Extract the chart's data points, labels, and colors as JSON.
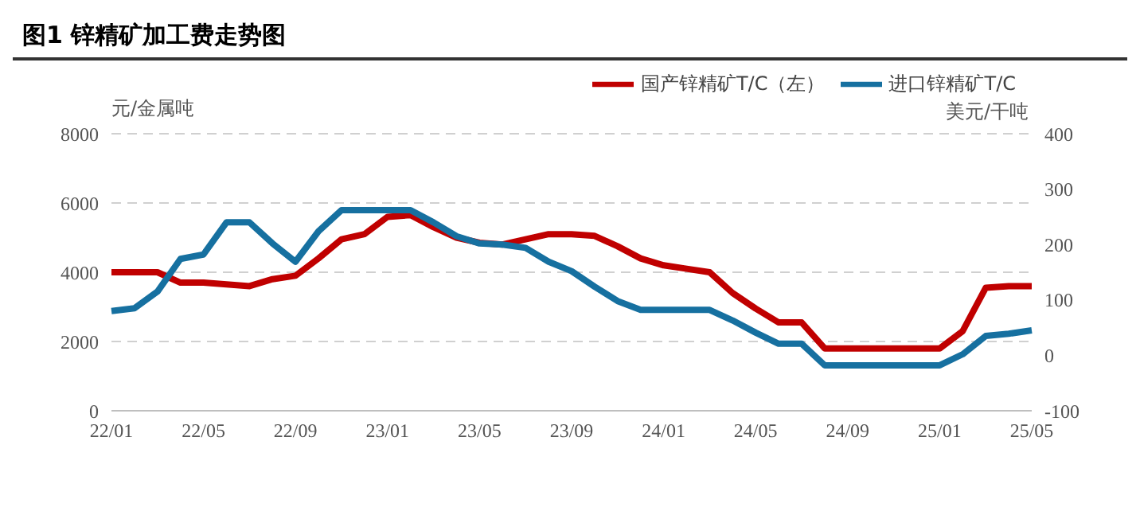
{
  "chart_data": {
    "type": "line",
    "title": "图1 锌精矿加工费走势图",
    "categories": [
      "22/01",
      null,
      null,
      null,
      "22/05",
      null,
      null,
      null,
      "22/09",
      null,
      null,
      null,
      "23/01",
      null,
      null,
      null,
      "23/05",
      null,
      null,
      null,
      "23/09",
      null,
      null,
      null,
      "24/01",
      null,
      null,
      null,
      "24/05",
      null,
      null,
      null,
      "24/09",
      null,
      null,
      null,
      "25/01",
      null,
      null,
      null,
      "25/05"
    ],
    "series": [
      {
        "name": "国产锌精矿T/C（左）",
        "color": "#c00000",
        "values": [
          4000,
          4000,
          4000,
          3700,
          3700,
          3650,
          3600,
          3800,
          3900,
          4400,
          4950,
          5100,
          5600,
          5650,
          5300,
          5000,
          4850,
          4800,
          4950,
          5100,
          5100,
          5050,
          4750,
          4400,
          4200,
          4100,
          4000,
          3400,
          2950,
          2550,
          2550,
          1800,
          1800,
          1800,
          1800,
          1800,
          1800,
          2300,
          3550,
          3600,
          3600
        ]
      },
      {
        "name": "进口锌精矿T/C",
        "color": "#1670a0",
        "axis": "y2",
        "values": [
          80,
          85,
          115,
          174,
          182,
          240,
          240,
          202,
          169,
          224,
          262,
          262,
          262,
          262,
          240,
          215,
          202,
          200,
          194,
          169,
          152,
          124,
          98,
          82,
          82,
          82,
          82,
          63,
          41,
          21,
          21,
          -18,
          -18,
          -18,
          -18,
          -18,
          -18,
          2,
          35,
          39,
          45
        ]
      }
    ],
    "ylabel": "元/金属吨",
    "y2label": "美元/干吨",
    "ylim": [
      0,
      8000
    ],
    "yticks": [
      0,
      2000,
      4000,
      6000,
      8000
    ],
    "y2lim": [
      -100,
      400
    ],
    "y2ticks": [
      -100,
      0,
      100,
      200,
      300,
      400
    ],
    "grid": "y",
    "legend": "top right"
  }
}
